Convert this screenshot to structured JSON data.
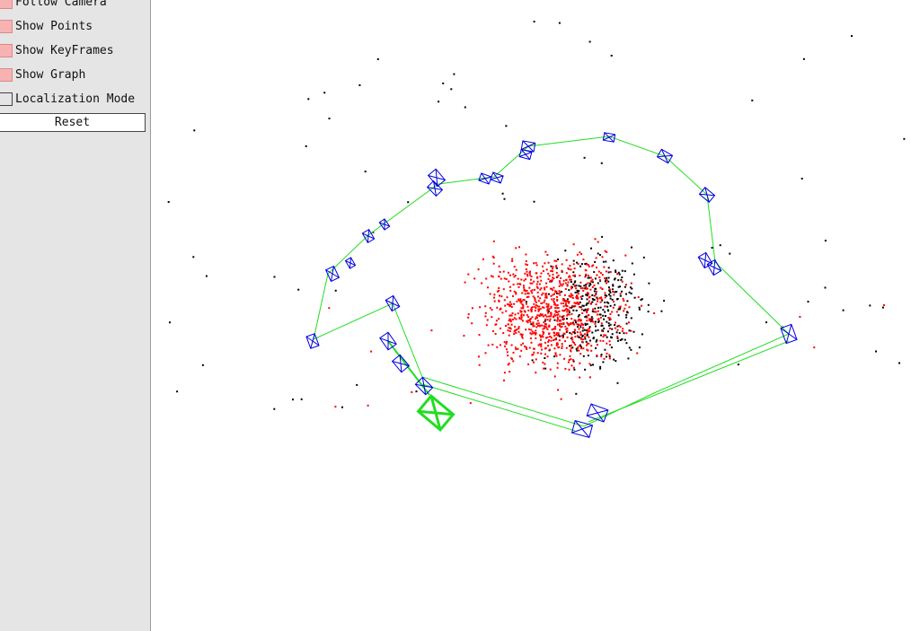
{
  "panel": {
    "follow_camera": {
      "label": "Follow Camera",
      "checked": true
    },
    "show_points": {
      "label": "Show Points",
      "checked": true
    },
    "show_keyframes": {
      "label": "Show KeyFrames",
      "checked": true
    },
    "show_graph": {
      "label": "Show Graph",
      "checked": true
    },
    "localization_mode": {
      "label": "Localization Mode",
      "checked": false
    },
    "reset_label": "Reset"
  },
  "colors": {
    "panel_bg": "#e5e5e5",
    "checkbox_on": "#f7b3b3",
    "keyframe": "#0000dd",
    "graph": "#22dd22",
    "current_camera": "#22dd22",
    "map_point": "#000000",
    "reference_point": "#ff0000"
  }
}
